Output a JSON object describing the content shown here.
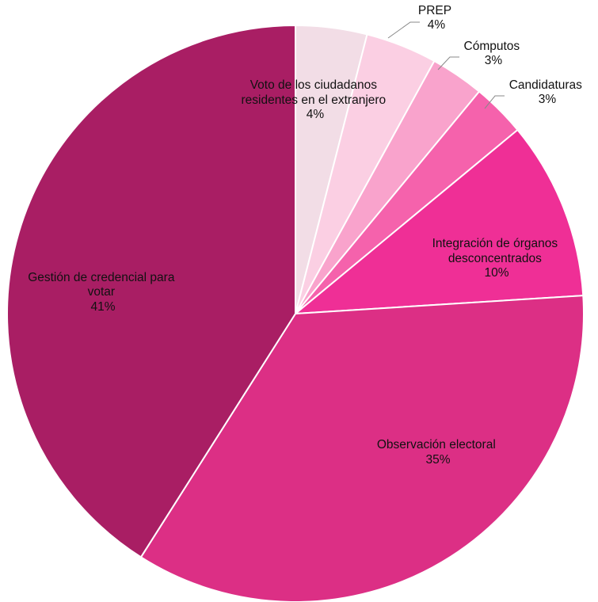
{
  "chart_data": {
    "type": "pie",
    "title": "",
    "slices": [
      {
        "label": "Voto de los ciudadanos residentes en el extranjero",
        "value": 4,
        "value_label": "4%",
        "color": "#f2dde6"
      },
      {
        "label": "PREP",
        "value": 4,
        "value_label": "4%",
        "color": "#fbcfe3"
      },
      {
        "label": "Cómputos",
        "value": 3,
        "value_label": "3%",
        "color": "#f9a3cc"
      },
      {
        "label": "Candidaturas",
        "value": 3,
        "value_label": "3%",
        "color": "#f562ac"
      },
      {
        "label": "Integración de órganos desconcentrados",
        "value": 10,
        "value_label": "10%",
        "color": "#ef2f96"
      },
      {
        "label": "Observación electoral",
        "value": 35,
        "value_label": "35%",
        "color": "#dc2f85"
      },
      {
        "label": "Gestión de credencial para votar",
        "value": 41,
        "value_label": "41%",
        "color": "#a91e64"
      }
    ],
    "legend": "none",
    "labels": "on-slice with leader lines for small slices"
  }
}
